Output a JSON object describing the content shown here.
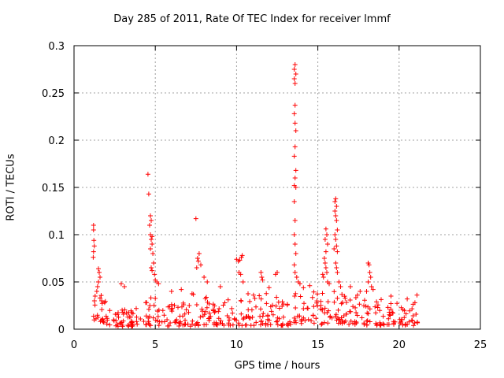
{
  "chart_data": {
    "type": "scatter",
    "title": "Day 285 of 2011, Rate Of TEC Index for receiver lmmf",
    "xlabel": "GPS time / hours",
    "ylabel": "ROTI / TECUs",
    "xlim": [
      0,
      25
    ],
    "ylim": [
      0,
      0.3
    ],
    "xticks": [
      "0",
      "5",
      "10",
      "15",
      "20",
      "25"
    ],
    "yticks": [
      "0",
      "0.05",
      "0.1",
      "0.15",
      "0.2",
      "0.25",
      "0.3"
    ],
    "grid": true,
    "marker": "plus",
    "color": "#ff0000",
    "series": [
      {
        "points": [
          [
            1.2,
            0.11
          ],
          [
            1.2,
            0.105
          ],
          [
            1.22,
            0.094
          ],
          [
            1.25,
            0.088
          ],
          [
            1.2,
            0.082
          ],
          [
            1.18,
            0.076
          ],
          [
            1.5,
            0.064
          ],
          [
            1.55,
            0.06
          ],
          [
            1.6,
            0.055
          ],
          [
            1.5,
            0.05
          ],
          [
            1.45,
            0.045
          ],
          [
            1.4,
            0.04
          ],
          [
            1.3,
            0.035
          ],
          [
            1.6,
            0.033
          ],
          [
            1.7,
            0.03
          ],
          [
            4.55,
            0.164
          ],
          [
            4.6,
            0.143
          ],
          [
            4.7,
            0.12
          ],
          [
            4.75,
            0.115
          ],
          [
            4.65,
            0.11
          ],
          [
            4.7,
            0.1
          ],
          [
            4.8,
            0.098
          ],
          [
            4.75,
            0.095
          ],
          [
            4.8,
            0.09
          ],
          [
            4.7,
            0.085
          ],
          [
            4.85,
            0.08
          ],
          [
            4.9,
            0.07
          ],
          [
            4.75,
            0.065
          ],
          [
            4.8,
            0.062
          ],
          [
            4.95,
            0.058
          ],
          [
            5.0,
            0.052
          ],
          [
            5.1,
            0.05
          ],
          [
            5.2,
            0.048
          ],
          [
            7.5,
            0.117
          ],
          [
            7.6,
            0.075
          ],
          [
            7.65,
            0.072
          ],
          [
            7.7,
            0.08
          ],
          [
            7.8,
            0.068
          ],
          [
            7.55,
            0.065
          ],
          [
            8.0,
            0.055
          ],
          [
            8.2,
            0.05
          ],
          [
            10.0,
            0.074
          ],
          [
            10.1,
            0.072
          ],
          [
            10.2,
            0.073
          ],
          [
            10.3,
            0.076
          ],
          [
            10.35,
            0.078
          ],
          [
            10.15,
            0.06
          ],
          [
            10.25,
            0.058
          ],
          [
            10.4,
            0.05
          ],
          [
            11.5,
            0.06
          ],
          [
            11.55,
            0.055
          ],
          [
            11.6,
            0.052
          ],
          [
            12.4,
            0.058
          ],
          [
            12.5,
            0.06
          ],
          [
            13.55,
            0.275
          ],
          [
            13.6,
            0.28
          ],
          [
            13.65,
            0.27
          ],
          [
            13.55,
            0.265
          ],
          [
            13.6,
            0.26
          ],
          [
            13.6,
            0.237
          ],
          [
            13.55,
            0.228
          ],
          [
            13.6,
            0.218
          ],
          [
            13.65,
            0.21
          ],
          [
            13.6,
            0.193
          ],
          [
            13.55,
            0.183
          ],
          [
            13.65,
            0.168
          ],
          [
            13.6,
            0.16
          ],
          [
            13.55,
            0.152
          ],
          [
            13.65,
            0.15
          ],
          [
            13.55,
            0.135
          ],
          [
            13.6,
            0.115
          ],
          [
            13.55,
            0.1
          ],
          [
            13.6,
            0.09
          ],
          [
            13.65,
            0.08
          ],
          [
            13.55,
            0.068
          ],
          [
            13.6,
            0.06
          ],
          [
            13.7,
            0.055
          ],
          [
            13.8,
            0.05
          ],
          [
            13.9,
            0.048
          ],
          [
            15.5,
            0.106
          ],
          [
            15.55,
            0.1
          ],
          [
            15.45,
            0.095
          ],
          [
            15.6,
            0.09
          ],
          [
            15.5,
            0.082
          ],
          [
            15.4,
            0.075
          ],
          [
            15.45,
            0.07
          ],
          [
            15.5,
            0.065
          ],
          [
            15.55,
            0.06
          ],
          [
            15.3,
            0.058
          ],
          [
            15.35,
            0.055
          ],
          [
            15.6,
            0.05
          ],
          [
            15.7,
            0.048
          ],
          [
            16.05,
            0.135
          ],
          [
            16.1,
            0.138
          ],
          [
            16.15,
            0.13
          ],
          [
            16.05,
            0.125
          ],
          [
            16.1,
            0.12
          ],
          [
            16.15,
            0.115
          ],
          [
            16.2,
            0.105
          ],
          [
            16.05,
            0.1
          ],
          [
            16.1,
            0.095
          ],
          [
            16.15,
            0.088
          ],
          [
            16.0,
            0.085
          ],
          [
            16.2,
            0.082
          ],
          [
            16.1,
            0.07
          ],
          [
            16.15,
            0.065
          ],
          [
            16.2,
            0.06
          ],
          [
            16.3,
            0.05
          ],
          [
            16.4,
            0.045
          ],
          [
            18.1,
            0.07
          ],
          [
            18.15,
            0.068
          ],
          [
            18.2,
            0.06
          ],
          [
            18.25,
            0.055
          ],
          [
            18.1,
            0.05
          ],
          [
            18.3,
            0.045
          ],
          [
            18.4,
            0.042
          ],
          [
            18.0,
            0.04
          ],
          [
            2.9,
            0.048
          ],
          [
            3.1,
            0.045
          ],
          [
            6.0,
            0.04
          ],
          [
            6.6,
            0.042
          ],
          [
            9.0,
            0.045
          ],
          [
            12.0,
            0.044
          ],
          [
            14.5,
            0.046
          ],
          [
            17.0,
            0.045
          ],
          [
            17.6,
            0.04
          ],
          [
            19.5,
            0.035
          ],
          [
            20.5,
            0.032
          ],
          [
            21.1,
            0.036
          ]
        ],
        "bands": [
          [
            1.1,
            2.0,
            0.006,
            0.036
          ],
          [
            2.0,
            4.3,
            0.003,
            0.022
          ],
          [
            4.3,
            5.5,
            0.004,
            0.034
          ],
          [
            5.5,
            7.2,
            0.003,
            0.028
          ],
          [
            7.2,
            8.6,
            0.004,
            0.038
          ],
          [
            8.6,
            10.0,
            0.004,
            0.032
          ],
          [
            10.0,
            12.0,
            0.004,
            0.04
          ],
          [
            12.0,
            13.4,
            0.004,
            0.035
          ],
          [
            13.4,
            14.2,
            0.006,
            0.044
          ],
          [
            14.2,
            15.3,
            0.005,
            0.04
          ],
          [
            15.3,
            16.6,
            0.006,
            0.042
          ],
          [
            16.6,
            18.0,
            0.005,
            0.04
          ],
          [
            18.0,
            19.2,
            0.004,
            0.038
          ],
          [
            19.2,
            20.2,
            0.005,
            0.032
          ],
          [
            20.2,
            21.2,
            0.004,
            0.03
          ]
        ],
        "band_density": 22
      }
    ]
  }
}
